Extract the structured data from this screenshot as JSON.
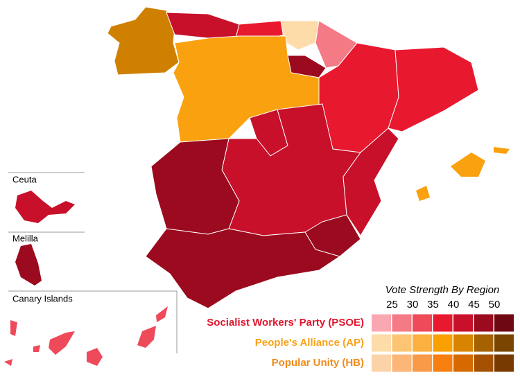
{
  "insets": [
    {
      "label": "Ceuta"
    },
    {
      "label": "Melilla"
    },
    {
      "label": "Canary Islands"
    }
  ],
  "legend": {
    "title": "Vote Strength By Region",
    "ticks": [
      25,
      30,
      35,
      40,
      45,
      50
    ],
    "rows": [
      {
        "label": "Socialist Workers' Party (PSOE)",
        "label_color": "#e0152c",
        "colors": [
          "#f9a8b2",
          "#f47a86",
          "#ee4a5a",
          "#e8192f",
          "#c8102a",
          "#9b0a1e",
          "#6e0812"
        ]
      },
      {
        "label": "People's Alliance (AP)",
        "label_color": "#f7a21b",
        "colors": [
          "#fddcaa",
          "#fcc473",
          "#fbb040",
          "#f9a000",
          "#d88400",
          "#a66200",
          "#7a4500"
        ]
      },
      {
        "label": "Popular Unity (HB)",
        "label_color": "#f28a1a",
        "colors": [
          "#fcd3a8",
          "#fbb678",
          "#f99a48",
          "#f77f10",
          "#d66a00",
          "#a55000",
          "#773a00"
        ]
      }
    ]
  }
}
